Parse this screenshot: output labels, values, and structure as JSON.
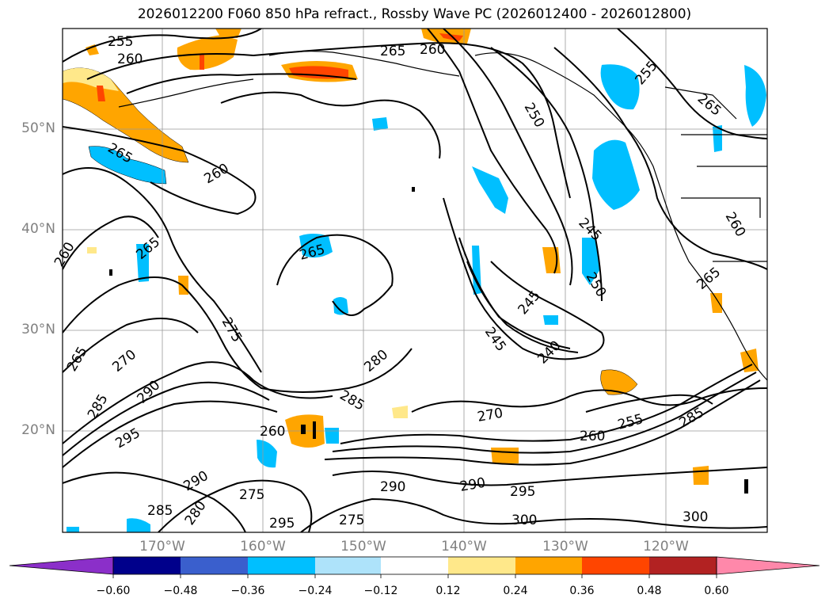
{
  "title": "2026012200 F060 850 hPa refract., Rossby Wave PC (2026012400 - 2026012800)",
  "lat_labels": [
    "50°N",
    "40°N",
    "30°N",
    "20°N"
  ],
  "lon_labels": [
    "170°W",
    "160°W",
    "150°W",
    "140°W",
    "130°W",
    "120°W"
  ],
  "colorbar": {
    "ticks": [
      "−0.60",
      "−0.48",
      "−0.36",
      "−0.24",
      "−0.12",
      "0.12",
      "0.24",
      "0.36",
      "0.48",
      "0.60"
    ],
    "colors": [
      "#8b2fc9",
      "#00008b",
      "#3a5fcd",
      "#00bfff",
      "#aee3fa",
      "#ffffff",
      "#ffe88a",
      "#ffa500",
      "#ff4500",
      "#b22222",
      "#ff88aa"
    ]
  },
  "contour_labels": [
    "255",
    "260",
    "265",
    "260",
    "265",
    "250",
    "255",
    "265",
    "265",
    "260",
    "260",
    "265",
    "245",
    "250",
    "245",
    "240",
    "245",
    "275",
    "270",
    "280",
    "285",
    "270",
    "260",
    "255",
    "285",
    "265",
    "290",
    "295",
    "285",
    "290",
    "275",
    "285",
    "295",
    "290",
    "280",
    "275",
    "290",
    "295",
    "300",
    "300",
    "260",
    "260",
    "265"
  ]
}
